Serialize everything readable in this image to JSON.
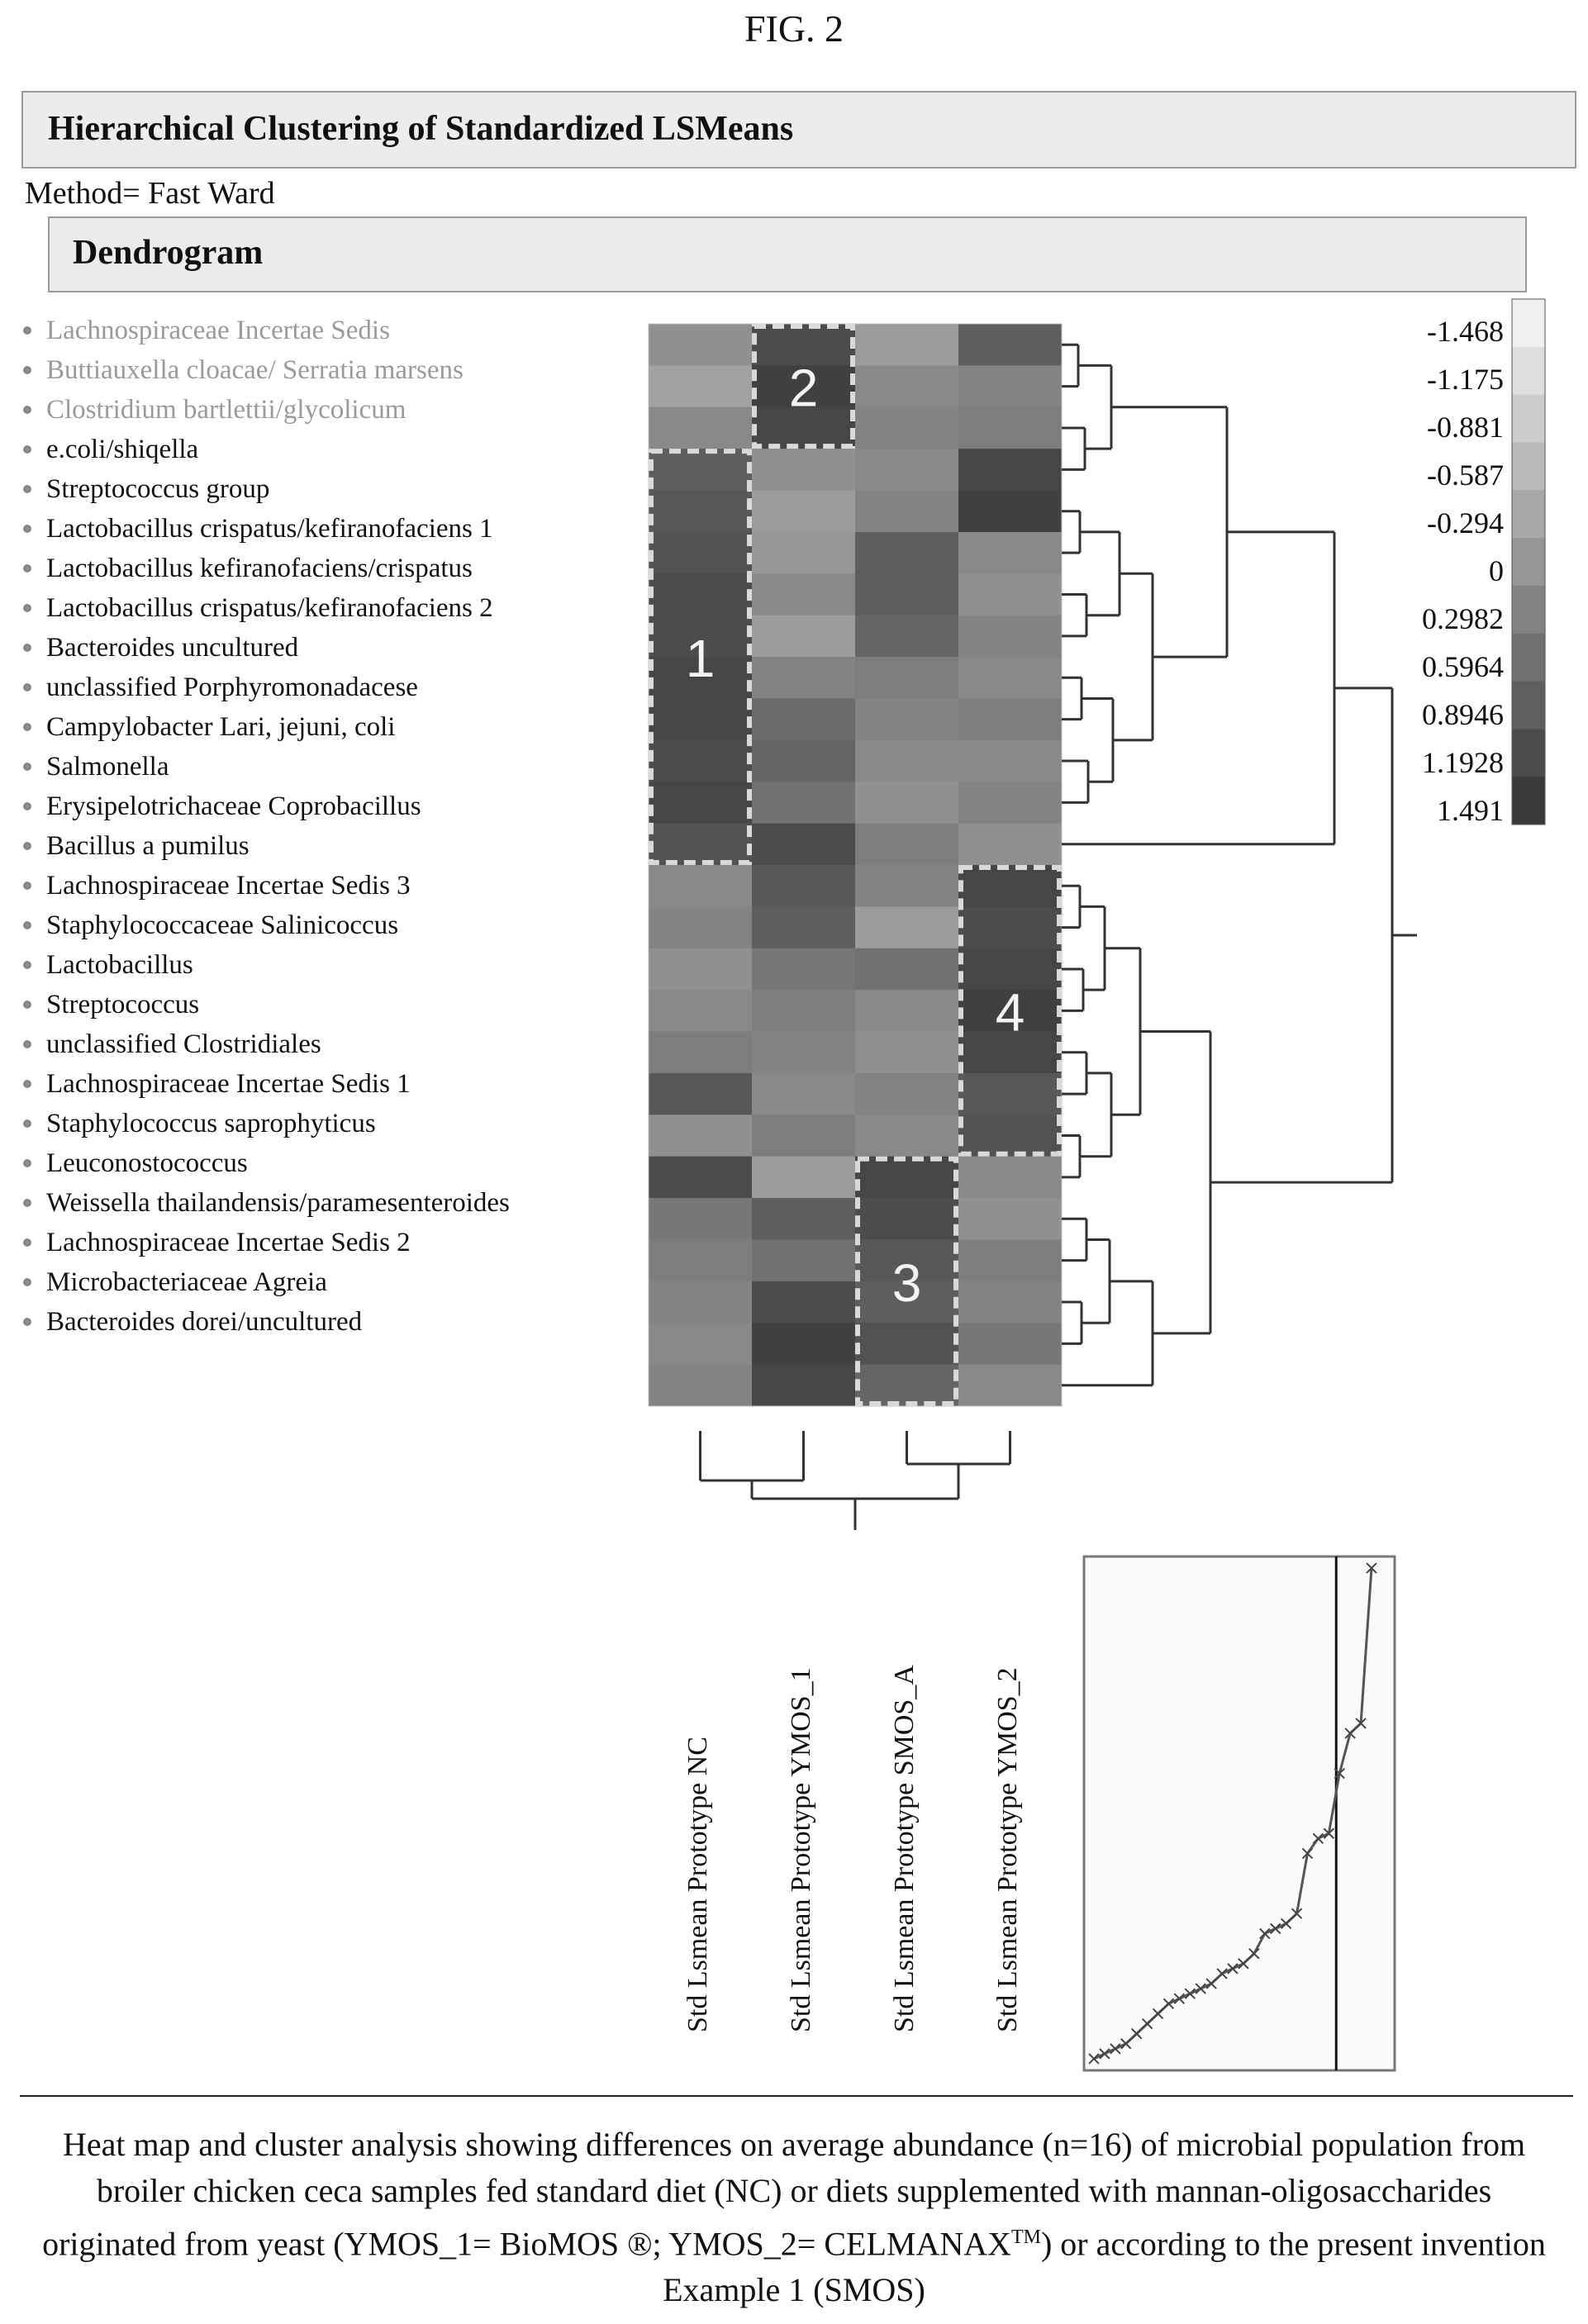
{
  "figure_label": "FIG. 2",
  "panel_title": "Hierarchical Clustering of Standardized LSMeans",
  "method": "Method= Fast Ward",
  "section_title": "Dendrogram",
  "caption": {
    "part1": "Heat map and cluster analysis showing differences on average abundance (n=16) of microbial population from broiler chicken ceca samples fed standard diet (NC) or diets supplemented with mannan-oligosaccharides originated from yeast (YMOS_1= BioMOS ®; YMOS_2= CELMANAX",
    "sup": "TM",
    "part2": ") or according to the present invention Example 1 (SMOS)"
  },
  "colors": {
    "low": "#f0f0f0",
    "high": "#3a3a3a",
    "cluster_box": "#d9d9d9",
    "grid_line": "#333333"
  },
  "chart_data": [
    {
      "type": "heatmap",
      "rows": [
        "Lachnospiraceae Incertae Sedis",
        "Buttiauxella cloacae/ Serratia marsens",
        "Clostridium bartlettii/glycolicum",
        "e.coli/shiqella",
        "Streptococcus group",
        "Lactobacillus crispatus/kefiranofaciens 1",
        "Lactobacillus kefiranofaciens/crispatus",
        "Lactobacillus crispatus/kefiranofaciens 2",
        "Bacteroides uncultured",
        "unclassified Porphyromonadacese",
        "Campylobacter Lari, jejuni, coli",
        "Salmonella",
        "Erysipelotrichaceae Coprobacillus",
        "Bacillus a pumilus",
        "Lachnospiraceae Incertae Sedis 3",
        "Staphylococcaceae Salinicoccus",
        "Lactobacillus",
        "Streptococcus",
        "unclassified Clostridiales",
        "Lachnospiraceae Incertae Sedis 1",
        "Staphylococcus saprophyticus",
        "Leuconostococcus",
        "Weissella thailandensis/paramesenteroides",
        "Lachnospiraceae Incertae Sedis 2",
        "Microbacteriaceae Agreia",
        "Bacteroides dorei/uncultured"
      ],
      "muted_rows": [
        0,
        1,
        2
      ],
      "columns": [
        "Std Lsmean Prototype NC",
        "Std Lsmean Prototype YMOS_1",
        "Std Lsmean Prototype SMOS_A",
        "Std Lsmean Prototype YMOS_2"
      ],
      "values": [
        [
          0.1,
          1.2,
          -0.1,
          0.9
        ],
        [
          -0.2,
          1.4,
          0.2,
          0.3
        ],
        [
          0.2,
          1.3,
          0.3,
          0.4
        ],
        [
          0.9,
          0.1,
          0.2,
          1.3
        ],
        [
          1.0,
          -0.1,
          0.3,
          1.4
        ],
        [
          1.1,
          0.0,
          0.9,
          0.2
        ],
        [
          1.2,
          0.2,
          0.9,
          0.1
        ],
        [
          1.2,
          -0.1,
          0.8,
          0.3
        ],
        [
          1.3,
          0.3,
          0.4,
          0.2
        ],
        [
          1.3,
          0.7,
          0.3,
          0.4
        ],
        [
          1.2,
          0.8,
          0.2,
          0.2
        ],
        [
          1.3,
          0.6,
          0.1,
          0.3
        ],
        [
          1.1,
          1.2,
          0.4,
          0.1
        ],
        [
          0.2,
          1.0,
          0.3,
          1.3
        ],
        [
          0.3,
          0.9,
          -0.1,
          1.2
        ],
        [
          0.1,
          0.5,
          0.6,
          1.3
        ],
        [
          0.2,
          0.4,
          0.2,
          1.4
        ],
        [
          0.4,
          0.3,
          0.1,
          1.3
        ],
        [
          1.0,
          0.2,
          0.3,
          1.0
        ],
        [
          0.1,
          0.4,
          0.2,
          1.1
        ],
        [
          1.2,
          -0.1,
          1.3,
          0.2
        ],
        [
          0.5,
          0.9,
          1.2,
          0.1
        ],
        [
          0.4,
          0.6,
          1.0,
          0.4
        ],
        [
          0.3,
          1.2,
          0.9,
          0.3
        ],
        [
          0.2,
          1.4,
          1.1,
          0.5
        ],
        [
          0.3,
          1.3,
          0.8,
          0.2
        ]
      ],
      "annotations": [
        {
          "label": "2",
          "rows": [
            0,
            2
          ],
          "cols": [
            1,
            1
          ]
        },
        {
          "label": "1",
          "rows": [
            3,
            12
          ],
          "cols": [
            0,
            0
          ]
        },
        {
          "label": "4",
          "rows": [
            13,
            19
          ],
          "cols": [
            3,
            3
          ]
        },
        {
          "label": "3",
          "rows": [
            20,
            25
          ],
          "cols": [
            2,
            2
          ]
        }
      ],
      "color_scale": {
        "ticks": [
          "-1.468",
          "-1.175",
          "-0.881",
          "-0.587",
          "-0.294",
          "0",
          "0.2982",
          "0.5964",
          "0.8946",
          "1.1928",
          "1.491"
        ],
        "range": [
          -1.468,
          1.491
        ]
      }
    },
    {
      "type": "line",
      "title": "",
      "xlabel": "",
      "ylabel": "",
      "values": [
        0.01,
        0.02,
        0.03,
        0.04,
        0.06,
        0.08,
        0.1,
        0.12,
        0.13,
        0.14,
        0.15,
        0.16,
        0.18,
        0.19,
        0.2,
        0.22,
        0.26,
        0.27,
        0.28,
        0.3,
        0.42,
        0.45,
        0.46,
        0.58,
        0.66,
        0.68,
        0.99
      ],
      "cut_index": 23
    }
  ]
}
